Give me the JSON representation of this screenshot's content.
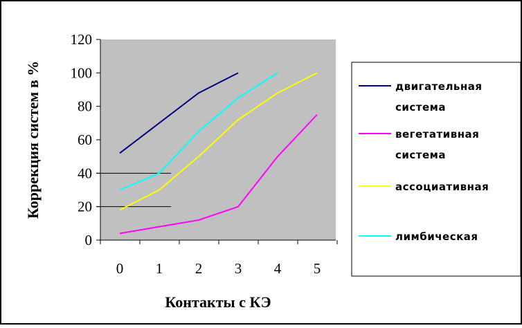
{
  "chart_data": {
    "type": "line",
    "title": "",
    "xlabel": "Контакты с КЭ",
    "ylabel": "Коррекция систем в %",
    "x": [
      0,
      1,
      2,
      3,
      4,
      5
    ],
    "ylim": [
      0,
      120
    ],
    "yticks": [
      0,
      20,
      40,
      60,
      80,
      100,
      120
    ],
    "grid": false,
    "legend_position": "right",
    "plot_background": "#c0c0c0",
    "series": [
      {
        "name": "двигательная система",
        "legend_lines": [
          "двигательная",
          "система"
        ],
        "color": "#000080",
        "x": [
          0,
          1,
          2,
          3
        ],
        "values": [
          52,
          70,
          88,
          100
        ]
      },
      {
        "name": "вегетативная система",
        "legend_lines": [
          "вегетативная",
          "система"
        ],
        "color": "#ff00ff",
        "x": [
          0,
          1,
          2,
          3,
          4,
          5
        ],
        "values": [
          4,
          8,
          12,
          20,
          50,
          75
        ]
      },
      {
        "name": "ассоциативная",
        "legend_lines": [
          "ассоциативная"
        ],
        "color": "#ffff00",
        "x": [
          0,
          1,
          2,
          3,
          4,
          5
        ],
        "values": [
          18,
          30,
          50,
          72,
          88,
          100
        ]
      },
      {
        "name": "лимбическая",
        "legend_lines": [
          "лимбическая"
        ],
        "color": "#00ffff",
        "x": [
          0,
          1,
          2,
          3,
          4
        ],
        "values": [
          30,
          40,
          65,
          85,
          100
        ]
      }
    ],
    "reference_lines": [
      {
        "y": 40,
        "x_from": 0,
        "x_to": 1.3,
        "color": "#000000"
      },
      {
        "y": 20,
        "x_from": 0,
        "x_to": 1.3,
        "color": "#000000"
      }
    ]
  }
}
